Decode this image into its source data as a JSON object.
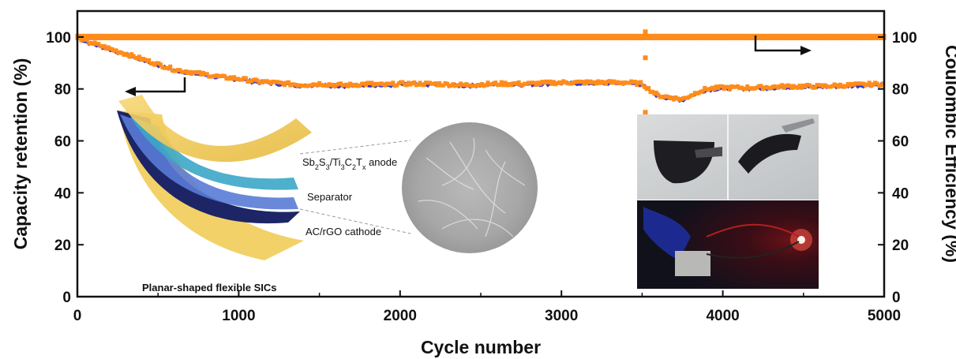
{
  "chart_data": {
    "type": "scatter",
    "xlabel": "Cycle number",
    "ylabel_left": "Capacity retention (%)",
    "ylabel_right": "Coulombic Efficiency (%)",
    "xlim": [
      0,
      5000
    ],
    "ylim_left": [
      0,
      110
    ],
    "ylim_right": [
      0,
      110
    ],
    "x_ticks": [
      "0",
      "1000",
      "2000",
      "3000",
      "4000",
      "5000"
    ],
    "y_ticks_left": [
      "0",
      "20",
      "40",
      "60",
      "80",
      "100"
    ],
    "y_ticks_right": [
      "0",
      "20",
      "40",
      "60",
      "80",
      "100"
    ],
    "grid": false,
    "colors": {
      "discharge": "#3a39c8",
      "charge": "#ff8c1a",
      "efficiency": "#ff8c1a",
      "axis": "#111111"
    },
    "series": [
      {
        "role": "capacity-retention",
        "axis": "left",
        "x": [
          0,
          50,
          100,
          200,
          300,
          400,
          500,
          600,
          700,
          800,
          900,
          1000,
          1100,
          1200,
          1300,
          1400,
          1500,
          1600,
          1700,
          1800,
          1900,
          2000,
          2200,
          2400,
          2600,
          2800,
          3000,
          3200,
          3400,
          3500,
          3550,
          3600,
          3650,
          3700,
          3750,
          3800,
          3850,
          3900,
          4000,
          4200,
          4400,
          4600,
          4800,
          5000
        ],
        "y": [
          100,
          98.5,
          97.5,
          95.5,
          93.5,
          91.5,
          89.5,
          87.5,
          86.5,
          85.5,
          84.5,
          84,
          83,
          82.5,
          82,
          81.5,
          82,
          81.5,
          81.5,
          82,
          81.5,
          82,
          82,
          81.5,
          82,
          82,
          82.5,
          82.5,
          82.5,
          82,
          79.5,
          77.5,
          77,
          76.5,
          76,
          77.5,
          79,
          80,
          80.5,
          80.5,
          81,
          81,
          81.5,
          82
        ]
      },
      {
        "role": "coulombic-efficiency",
        "axis": "right",
        "x": [
          0,
          5000
        ],
        "y": [
          100,
          100
        ],
        "outliers": [
          {
            "x": 3520,
            "y": 92
          },
          {
            "x": 3520,
            "y": 102
          }
        ]
      }
    ],
    "annotations": {
      "anode": [
        "Sb",
        "2",
        "S",
        "3",
        "/Ti",
        "3",
        "C",
        "2",
        "T",
        "x",
        " anode"
      ],
      "separator": "Separator",
      "cathode": "AC/rGO cathode",
      "device": "Planar-shaped flexible SICs"
    }
  }
}
